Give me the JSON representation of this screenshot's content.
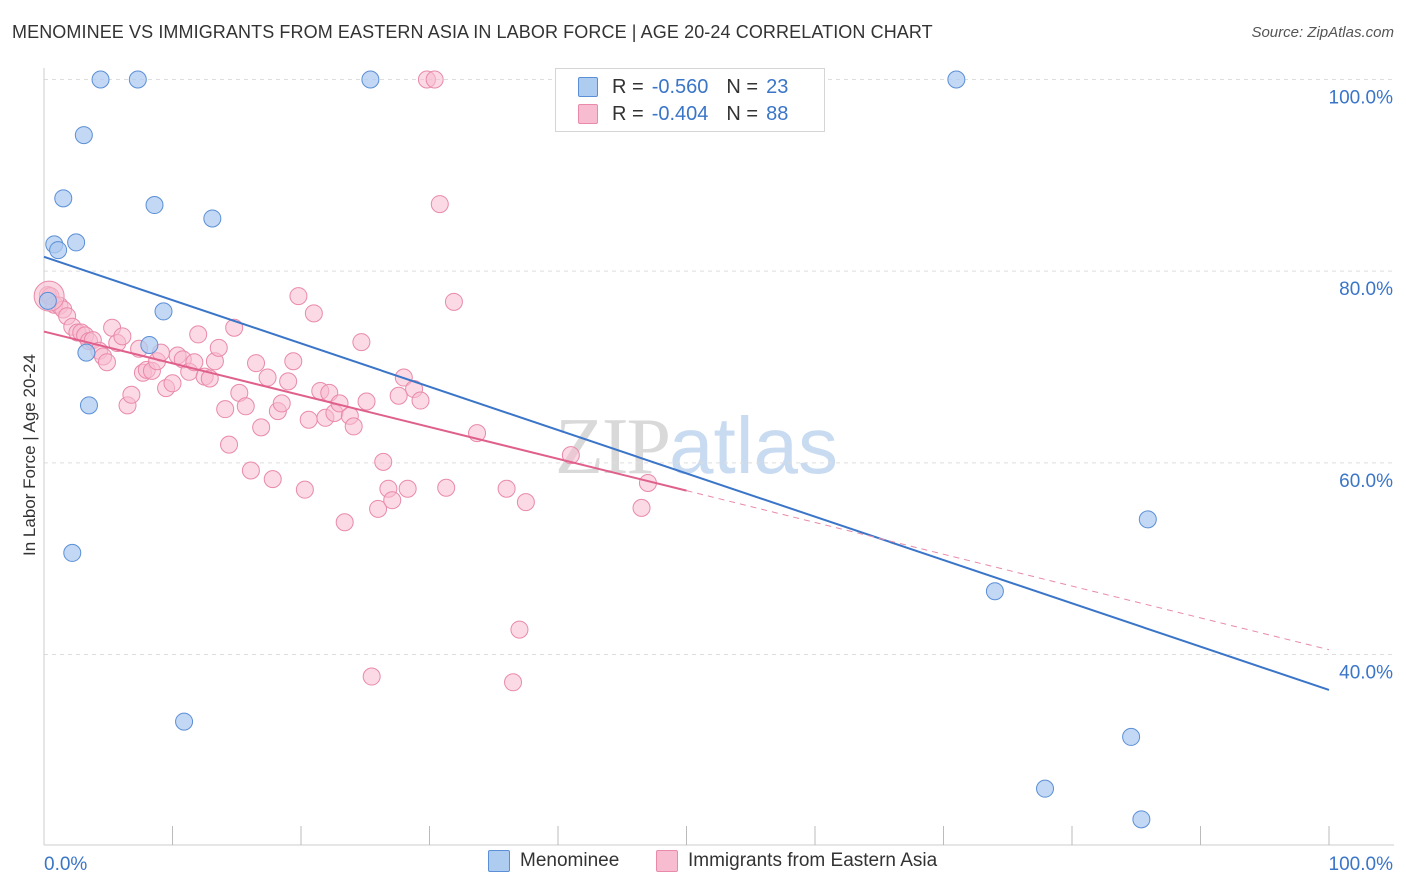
{
  "header": {
    "title": "MENOMINEE VS IMMIGRANTS FROM EASTERN ASIA IN LABOR FORCE | AGE 20-24 CORRELATION CHART",
    "source": "Source: ZipAtlas.com"
  },
  "watermark": {
    "part1": "ZIP",
    "part2": "atlas"
  },
  "legend": {
    "rows": [
      {
        "r_label": "R =",
        "r_value": "-0.560",
        "n_label": "N =",
        "n_value": "23",
        "color": "#aecbf0",
        "border": "#5b8fd6"
      },
      {
        "r_label": "R =",
        "r_value": "-0.404",
        "n_label": "N =",
        "n_value": "88",
        "color": "#f7bccf",
        "border": "#e98aa8"
      }
    ]
  },
  "bottom_legend": {
    "s1": "Menominee",
    "s2": "Immigrants from Eastern Asia"
  },
  "colors": {
    "blue": "#3a75c8",
    "blue_fill": "#aecbf0",
    "pink": "#e0608c",
    "pink_fill": "#f7bccf",
    "grid": "#dddddd"
  },
  "chart_data": {
    "type": "scatter",
    "title": "MENOMINEE VS IMMIGRANTS FROM EASTERN ASIA IN LABOR FORCE | AGE 20-24 CORRELATION CHART",
    "xlabel": "",
    "ylabel": "In Labor Force | Age 20-24",
    "xlim": [
      0,
      100
    ],
    "ylim": [
      20,
      102
    ],
    "x_tick_labels": [
      "0.0%",
      "100.0%"
    ],
    "y_ticks": [
      40,
      60,
      80,
      100
    ],
    "y_tick_labels": [
      "40.0%",
      "60.0%",
      "80.0%",
      "100.0%"
    ],
    "grid": true,
    "legend_position": "top-center",
    "series": [
      {
        "name": "Menominee",
        "color": "#aecbf0",
        "points": [
          [
            0.3,
            76.9
          ],
          [
            0.8,
            82.8
          ],
          [
            1.1,
            82.2
          ],
          [
            1.5,
            87.6
          ],
          [
            2.2,
            50.6
          ],
          [
            2.5,
            83.0
          ],
          [
            3.1,
            94.2
          ],
          [
            3.3,
            71.5
          ],
          [
            3.5,
            66.0
          ],
          [
            4.4,
            100.0
          ],
          [
            7.3,
            100.0
          ],
          [
            8.2,
            72.3
          ],
          [
            8.6,
            86.9
          ],
          [
            9.3,
            75.8
          ],
          [
            10.9,
            33.0
          ],
          [
            13.1,
            85.5
          ],
          [
            25.4,
            100.0
          ],
          [
            71.0,
            100.0
          ],
          [
            74.0,
            46.6
          ],
          [
            77.9,
            26.0
          ],
          [
            84.6,
            31.4
          ],
          [
            85.4,
            22.8
          ],
          [
            85.9,
            54.1
          ]
        ],
        "trend": {
          "x": [
            0,
            100
          ],
          "y": [
            81.5,
            36.3
          ]
        }
      },
      {
        "name": "Immigrants from Eastern Asia",
        "color": "#f7bccf",
        "points": [
          [
            0.3,
            77.5
          ],
          [
            0.5,
            77.4
          ],
          [
            0.8,
            76.5
          ],
          [
            1.2,
            76.4
          ],
          [
            1.5,
            76.0
          ],
          [
            1.8,
            75.3
          ],
          [
            2.2,
            74.2
          ],
          [
            2.6,
            73.6
          ],
          [
            2.9,
            73.6
          ],
          [
            3.2,
            73.3
          ],
          [
            3.5,
            72.7
          ],
          [
            3.8,
            72.8
          ],
          [
            4.3,
            71.7
          ],
          [
            4.6,
            71.1
          ],
          [
            4.9,
            70.5
          ],
          [
            5.3,
            74.1
          ],
          [
            5.7,
            72.5
          ],
          [
            6.1,
            73.2
          ],
          [
            6.5,
            66.0
          ],
          [
            6.8,
            67.1
          ],
          [
            7.4,
            71.9
          ],
          [
            7.7,
            69.4
          ],
          [
            8.0,
            69.7
          ],
          [
            8.4,
            69.6
          ],
          [
            8.8,
            70.6
          ],
          [
            9.1,
            71.5
          ],
          [
            9.5,
            67.8
          ],
          [
            10.0,
            68.3
          ],
          [
            10.4,
            71.2
          ],
          [
            10.8,
            70.8
          ],
          [
            11.3,
            69.5
          ],
          [
            11.7,
            70.5
          ],
          [
            12.0,
            73.4
          ],
          [
            12.5,
            69.0
          ],
          [
            12.9,
            68.8
          ],
          [
            13.3,
            70.6
          ],
          [
            13.6,
            72.0
          ],
          [
            14.1,
            65.6
          ],
          [
            14.4,
            61.9
          ],
          [
            14.8,
            74.1
          ],
          [
            15.2,
            67.3
          ],
          [
            15.7,
            65.9
          ],
          [
            16.1,
            59.2
          ],
          [
            16.5,
            70.4
          ],
          [
            16.9,
            63.7
          ],
          [
            17.4,
            68.9
          ],
          [
            17.8,
            58.3
          ],
          [
            18.2,
            65.4
          ],
          [
            18.5,
            66.2
          ],
          [
            19.0,
            68.5
          ],
          [
            19.4,
            70.6
          ],
          [
            19.8,
            77.4
          ],
          [
            20.3,
            57.2
          ],
          [
            20.6,
            64.5
          ],
          [
            21.0,
            75.6
          ],
          [
            21.5,
            67.5
          ],
          [
            21.9,
            64.7
          ],
          [
            22.2,
            67.3
          ],
          [
            22.6,
            65.2
          ],
          [
            23.0,
            66.2
          ],
          [
            23.4,
            53.8
          ],
          [
            23.8,
            64.9
          ],
          [
            24.1,
            63.8
          ],
          [
            24.7,
            72.6
          ],
          [
            25.1,
            66.4
          ],
          [
            25.5,
            37.7
          ],
          [
            26.0,
            55.2
          ],
          [
            26.4,
            60.1
          ],
          [
            26.8,
            57.3
          ],
          [
            27.1,
            56.1
          ],
          [
            27.6,
            67.0
          ],
          [
            28.0,
            68.9
          ],
          [
            28.3,
            57.3
          ],
          [
            28.8,
            67.7
          ],
          [
            29.3,
            66.5
          ],
          [
            29.8,
            100.0
          ],
          [
            30.4,
            100.0
          ],
          [
            30.8,
            87.0
          ],
          [
            31.3,
            57.4
          ],
          [
            31.9,
            76.8
          ],
          [
            33.7,
            63.1
          ],
          [
            36.0,
            57.3
          ],
          [
            36.5,
            37.1
          ],
          [
            37.0,
            42.6
          ],
          [
            41.0,
            60.8
          ],
          [
            47.0,
            57.9
          ],
          [
            46.5,
            55.3
          ],
          [
            37.5,
            55.9
          ]
        ],
        "trend": {
          "x": [
            0,
            50
          ],
          "y": [
            73.7,
            57.1
          ]
        },
        "trend_extension": {
          "x": [
            50,
            100
          ],
          "y": [
            57.1,
            40.5
          ]
        }
      }
    ]
  }
}
